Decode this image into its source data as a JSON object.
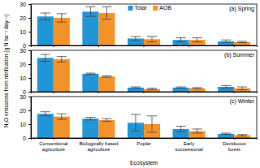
{
  "chart_data": [
    {
      "type": "bar",
      "title": "(a) Spring",
      "categories": [
        "Conventional agriculture",
        "Biologically based agriculture",
        "Poplar",
        "Early successional",
        "Deciduous forest"
      ],
      "series": [
        {
          "name": "Total",
          "color": "#2196d6",
          "values": [
            21,
            24.5,
            5,
            4,
            3
          ],
          "error": [
            2.5,
            3.5,
            1.5,
            1.5,
            1
          ]
        },
        {
          "name": "AOB",
          "color": "#f5922a",
          "values": [
            20,
            23.5,
            4.5,
            4,
            2.5
          ],
          "error": [
            3,
            4.5,
            2,
            1.5,
            0.5
          ]
        }
      ],
      "ylim": [
        0,
        30
      ],
      "yticks": [
        0,
        10,
        20,
        30
      ],
      "legend": "upper center",
      "tick_labels": "y"
    },
    {
      "type": "bar",
      "title": "(b) Summer",
      "y_label": "N₂O emissions from nitrification (g N ha⁻¹ day⁻¹)",
      "categories": [
        "Conventional agriculture",
        "Biologically based agriculture",
        "Poplar",
        "Early successional",
        "Deciduous forest"
      ],
      "series": [
        {
          "name": "Total",
          "color": "#2196d6",
          "values": [
            24.5,
            13,
            3,
            3,
            3.5
          ],
          "error": [
            2.5,
            0.5,
            0.5,
            0.5,
            1
          ]
        },
        {
          "name": "AOB",
          "color": "#f5922a",
          "values": [
            23.5,
            11,
            2,
            2.5,
            2.5
          ],
          "error": [
            2,
            0.5,
            0.5,
            0.5,
            1
          ]
        }
      ],
      "ylim": [
        0,
        30
      ],
      "yticks": [
        0,
        10,
        20,
        30
      ],
      "tick_labels": "y"
    },
    {
      "type": "bar",
      "title": "(c) Winter",
      "x_label": "Ecosystem",
      "categories": [
        "Conventional agriculture",
        "Biologically based agriculture",
        "Poplar",
        "Early successional",
        "Deciduous forest"
      ],
      "series": [
        {
          "name": "Total",
          "color": "#2196d6",
          "values": [
            17.5,
            14,
            11,
            6.5,
            3
          ],
          "error": [
            1.5,
            1,
            6,
            2,
            0.5
          ]
        },
        {
          "name": "AOB",
          "color": "#f5922a",
          "values": [
            15.5,
            13,
            10,
            5,
            2
          ],
          "error": [
            2,
            1,
            6,
            1.5,
            0.5
          ]
        }
      ],
      "ylim": [
        0,
        30
      ],
      "yticks": [
        0,
        10,
        20,
        30
      ]
    }
  ]
}
